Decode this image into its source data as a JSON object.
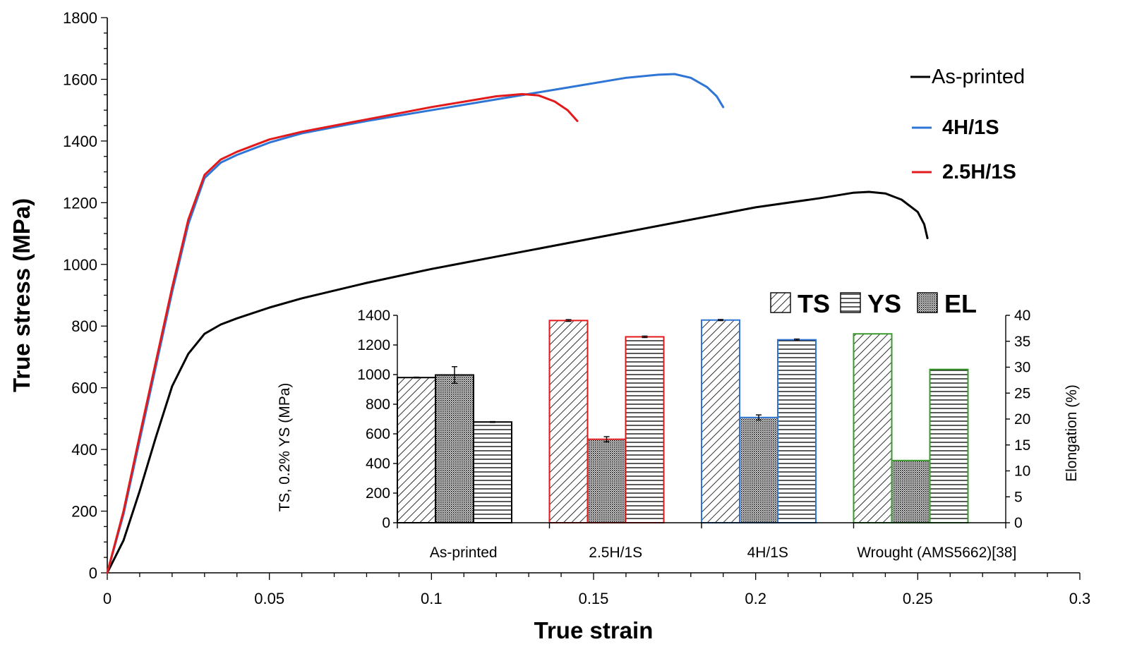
{
  "chart_data": [
    {
      "type": "line",
      "title": "",
      "xlabel": "True strain",
      "ylabel": "True stress (MPa)",
      "xlim": [
        0,
        0.3
      ],
      "ylim": [
        0,
        1800
      ],
      "xticks": [
        0,
        0.05,
        0.1,
        0.15,
        0.2,
        0.25,
        0.3
      ],
      "xtick_labels": [
        "0",
        "0.05",
        "0.1",
        "0.15",
        "0.2",
        "0.25",
        "0.3"
      ],
      "yticks": [
        0,
        200,
        400,
        600,
        800,
        1000,
        1200,
        1400,
        1600,
        1800
      ],
      "ytick_labels": [
        "0",
        "200",
        "400",
        "600",
        "800",
        "1000",
        "1200",
        "1400",
        "1600",
        "1800"
      ],
      "grid": false,
      "legend_position": "top-right",
      "series": [
        {
          "name": "As-printed",
          "color": "#000000",
          "x": [
            0,
            0.005,
            0.01,
            0.015,
            0.02,
            0.025,
            0.03,
            0.035,
            0.04,
            0.05,
            0.06,
            0.08,
            0.1,
            0.12,
            0.14,
            0.16,
            0.18,
            0.2,
            0.22,
            0.23,
            0.235,
            0.24,
            0.245,
            0.25,
            0.252,
            0.253
          ],
          "y": [
            0,
            105,
            265,
            440,
            605,
            710,
            775,
            805,
            825,
            860,
            890,
            940,
            985,
            1025,
            1065,
            1105,
            1145,
            1185,
            1215,
            1232,
            1235,
            1230,
            1210,
            1170,
            1130,
            1085
          ]
        },
        {
          "name": "4H/1S",
          "color": "#2E75D6",
          "x": [
            0,
            0.005,
            0.01,
            0.015,
            0.02,
            0.025,
            0.03,
            0.035,
            0.04,
            0.05,
            0.06,
            0.08,
            0.1,
            0.12,
            0.14,
            0.16,
            0.17,
            0.175,
            0.18,
            0.185,
            0.188,
            0.19
          ],
          "y": [
            0,
            190,
            430,
            670,
            910,
            1130,
            1280,
            1330,
            1355,
            1395,
            1425,
            1465,
            1500,
            1535,
            1570,
            1605,
            1615,
            1617,
            1605,
            1575,
            1545,
            1510
          ]
        },
        {
          "name": "2.5H/1S",
          "color": "#E31A1C",
          "x": [
            0,
            0.005,
            0.01,
            0.015,
            0.02,
            0.025,
            0.03,
            0.035,
            0.04,
            0.05,
            0.06,
            0.08,
            0.1,
            0.12,
            0.128,
            0.133,
            0.138,
            0.142,
            0.145
          ],
          "y": [
            0,
            200,
            445,
            685,
            925,
            1145,
            1290,
            1340,
            1365,
            1405,
            1430,
            1470,
            1510,
            1545,
            1552,
            1548,
            1528,
            1500,
            1465
          ]
        }
      ]
    },
    {
      "type": "bar",
      "title": "",
      "xlabel": "",
      "ylabel": "TS, 0.2% YS (MPa)",
      "y2label": "Elongation (%)",
      "ylim": [
        0,
        1400
      ],
      "y2lim": [
        0,
        40
      ],
      "yticks": [
        0,
        200,
        400,
        600,
        800,
        1000,
        1200,
        1400
      ],
      "ytick_labels": [
        "0",
        "200",
        "400",
        "600",
        "800",
        "1000",
        "1200",
        "1400"
      ],
      "y2ticks": [
        0,
        5,
        10,
        15,
        20,
        25,
        30,
        35,
        40
      ],
      "y2tick_labels": [
        "0",
        "5",
        "10",
        "15",
        "20",
        "25",
        "30",
        "35",
        "40"
      ],
      "legend_position": "top",
      "legend": [
        "TS",
        "YS",
        "EL"
      ],
      "categories": [
        "As-printed",
        "2.5H/1S",
        "4H/1S",
        "Wrought (AMS5662)[38]"
      ],
      "category_colors": [
        "#000000",
        "#E31A1C",
        "#2E75D6",
        "#3A9A2C"
      ],
      "bar_order": [
        "TS",
        "EL",
        "YS"
      ],
      "series": [
        {
          "name": "TS",
          "axis": "left",
          "pattern": "diagonal",
          "values": [
            980,
            1365,
            1368,
            1275
          ],
          "errors": [
            3,
            6,
            4,
            0
          ]
        },
        {
          "name": "EL",
          "axis": "right",
          "pattern": "dots",
          "values": [
            28.5,
            16.1,
            20.3,
            12
          ],
          "errors": [
            1.6,
            0.5,
            0.5,
            0
          ]
        },
        {
          "name": "YS",
          "axis": "left",
          "pattern": "horizontal",
          "values": [
            680,
            1255,
            1235,
            1035
          ],
          "errors": [
            3,
            5,
            5,
            0
          ]
        }
      ]
    }
  ]
}
